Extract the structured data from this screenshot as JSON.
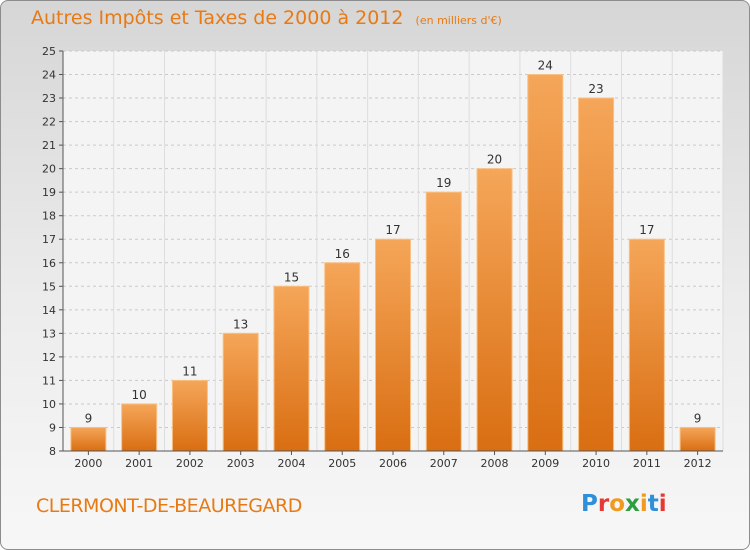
{
  "header": {
    "title": "Autres Impôts et Taxes de 2000 à 2012",
    "subtitle": "(en milliers d'€)"
  },
  "footer": {
    "commune": "CLERMONT-DE-BEAUREGARD",
    "logo_letters": [
      "P",
      "r",
      "o",
      "x",
      "i",
      "t",
      "i"
    ],
    "logo_colors": [
      "#2f8fd8",
      "#e53935",
      "#f29a1f",
      "#2e9e40",
      "#f29a1f",
      "#2f8fd8",
      "#e53935"
    ]
  },
  "colors": {
    "bar_top": "#f5a659",
    "bar_bottom": "#d96e12",
    "bar_edge": "#f8c084",
    "axis": "#555555",
    "grid": "#c9c9c9",
    "title": "#e87a14"
  },
  "chart_data": {
    "type": "bar",
    "categories": [
      "2000",
      "2001",
      "2002",
      "2003",
      "2004",
      "2005",
      "2006",
      "2007",
      "2008",
      "2009",
      "2010",
      "2011",
      "2012"
    ],
    "values": [
      9,
      10,
      11,
      13,
      15,
      16,
      17,
      19,
      20,
      24,
      23,
      17,
      9
    ],
    "title": "Autres Impôts et Taxes de 2000 à 2012",
    "subtitle": "(en milliers d'€)",
    "ylim": [
      8,
      25
    ],
    "yticks": [
      8,
      9,
      10,
      11,
      12,
      13,
      14,
      15,
      16,
      17,
      18,
      19,
      20,
      21,
      22,
      23,
      24,
      25
    ],
    "grid": "horizontal dashed",
    "data_labels": true
  }
}
